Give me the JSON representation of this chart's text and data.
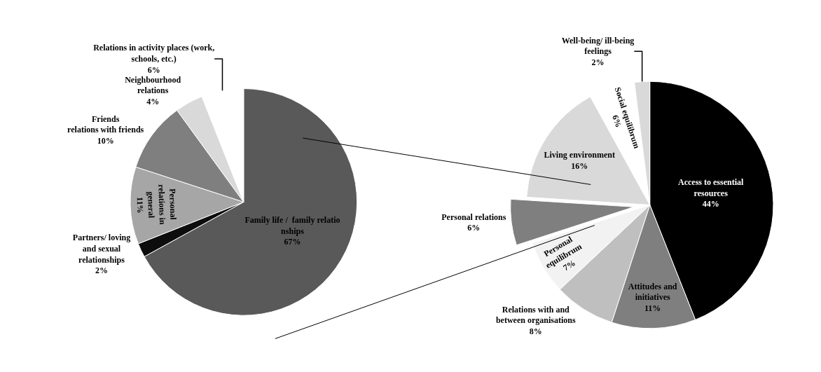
{
  "chart_data": [
    {
      "type": "pie",
      "categories": [
        "Family life /  family relatio\nnships",
        "Partners/ loving\nand sexual\nrelationships",
        "Personal\nrelations in\ngeneral",
        "Friends\nrelations with friends",
        "Neighbourhood\nrelations",
        "Relations in activity places (work,\nschools, etc.)"
      ],
      "values": [
        67,
        2,
        11,
        10,
        4,
        6
      ],
      "value_labels": [
        "67%",
        "2%",
        "11%",
        "10%",
        "4%",
        "6%"
      ],
      "colors": [
        "#595959",
        "#0d0d0d",
        "#a6a6a6",
        "#7f7f7f",
        "#d9d9d9",
        "#ffffff"
      ],
      "legend": false
    },
    {
      "type": "pie",
      "categories": [
        "Access to essential\nresources",
        "Attitudes and\ninitiatives",
        "Relations with and\nbetween organisations",
        "Personal\nequilibrum",
        "Personal relations",
        "Living environment",
        "Social equilibrum",
        "Well-being/ ill-being\nfeelings"
      ],
      "values": [
        44,
        11,
        8,
        7,
        6,
        16,
        6,
        2
      ],
      "value_labels": [
        "44%",
        "11%",
        "8%",
        "7%",
        "6%",
        "16%",
        "6%",
        "2%"
      ],
      "colors": [
        "#000000",
        "#7f7f7f",
        "#bfbfbf",
        "#f2f2f2",
        "#7f7f7f",
        "#d9d9d9",
        "#ffffff",
        "#d9d9d9"
      ],
      "legend": false
    }
  ]
}
